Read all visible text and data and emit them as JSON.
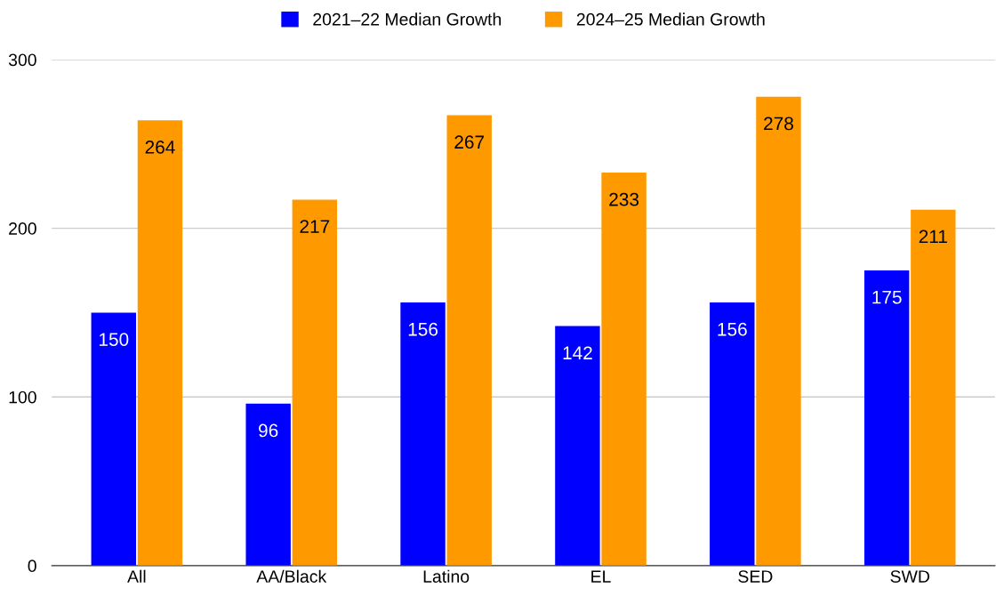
{
  "chart_data": {
    "type": "bar",
    "categories": [
      "All",
      "AA/Black",
      "Latino",
      "EL",
      "SED",
      "SWD"
    ],
    "series": [
      {
        "name": "2021–22 Median Growth",
        "color": "#0000ff",
        "values": [
          150,
          96,
          156,
          142,
          156,
          175
        ]
      },
      {
        "name": "2024–25 Median Growth",
        "color": "#ff9900",
        "values": [
          264,
          217,
          267,
          233,
          278,
          211
        ]
      }
    ],
    "ylim": [
      0,
      300
    ],
    "yticks": [
      0,
      100,
      200,
      300
    ],
    "grid": "y",
    "legend": "top",
    "data_labels": true
  }
}
